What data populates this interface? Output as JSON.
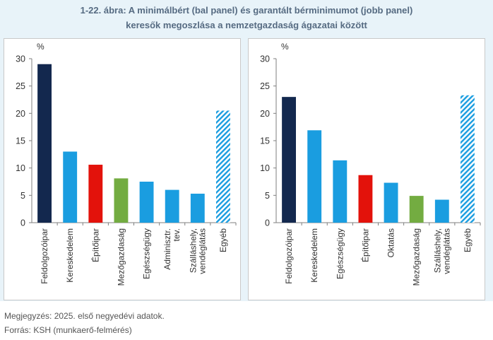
{
  "title": {
    "line1": "1-22. ábra: A minimálbért (bal panel) és garantált bérminimumot (jobb panel)",
    "line2": "keresők megoszlása a nemzetgazdaság ágazatai között"
  },
  "note": "Megjegyzés: 2025. első negyedévi adatok.",
  "source": "Forrás: KSH (munkaerő-felmérés)",
  "colors": {
    "navy": "#13284e",
    "blue": "#1a9de0",
    "red": "#e3120b",
    "green": "#73ac41",
    "hatch": "#1a9de0"
  },
  "chart_data": [
    {
      "type": "bar",
      "ylabel": "%",
      "ylim": [
        0,
        30
      ],
      "yticks": [
        0,
        5,
        10,
        15,
        20,
        25,
        30
      ],
      "grid": false,
      "categories": [
        [
          "Feldolgozóipar"
        ],
        [
          "Kereskedelem"
        ],
        [
          "Építőipar"
        ],
        [
          "Mezőgazdaság"
        ],
        [
          "Egészségügy"
        ],
        [
          "Adminisztr.",
          "tev."
        ],
        [
          "Szálláshely,",
          "vendéglátás"
        ],
        [
          "Egyéb"
        ]
      ],
      "values": [
        29.0,
        13.0,
        10.6,
        8.1,
        7.5,
        6.0,
        5.3,
        20.5
      ],
      "bar_colors": [
        "navy",
        "blue",
        "red",
        "green",
        "blue",
        "blue",
        "blue",
        "hatch"
      ]
    },
    {
      "type": "bar",
      "ylabel": "%",
      "ylim": [
        0,
        30
      ],
      "yticks": [
        0,
        5,
        10,
        15,
        20,
        25,
        30
      ],
      "grid": false,
      "categories": [
        [
          "Feldolgozóipar"
        ],
        [
          "Kereskedelem"
        ],
        [
          "Egészségügy"
        ],
        [
          "Építőipar"
        ],
        [
          "Oktatás"
        ],
        [
          "Mezőgazdaság"
        ],
        [
          "Szálláshely,",
          "vendéglátás"
        ],
        [
          "Egyéb"
        ]
      ],
      "values": [
        23.0,
        16.9,
        11.4,
        8.7,
        7.3,
        4.9,
        4.2,
        23.3
      ],
      "bar_colors": [
        "navy",
        "blue",
        "blue",
        "red",
        "blue",
        "green",
        "blue",
        "hatch"
      ]
    }
  ]
}
